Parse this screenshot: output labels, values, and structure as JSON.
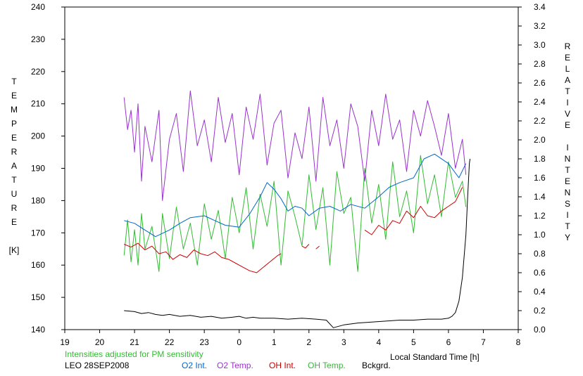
{
  "chart_data": {
    "type": "line",
    "title": "",
    "xlabel": "Local Standard Time [h]",
    "ylabel_left_letters": [
      "T",
      "E",
      "M",
      "P",
      "E",
      "R",
      "A",
      "T",
      "U",
      "R",
      "E",
      "",
      "[K]"
    ],
    "ylabel_right_letters": [
      "R",
      "E",
      "L",
      "A",
      "T",
      "I",
      "V",
      "E",
      "",
      "I",
      "N",
      "T",
      "E",
      "N",
      "S",
      "I",
      "T",
      "Y"
    ],
    "xlim": [
      19,
      32
    ],
    "x_ticks": [
      19,
      20,
      21,
      22,
      23,
      24,
      25,
      26,
      27,
      28,
      29,
      30,
      31,
      32
    ],
    "x_tick_labels": [
      "19",
      "20",
      "21",
      "22",
      "23",
      "0",
      "1",
      "2",
      "3",
      "4",
      "5",
      "6",
      "7",
      "8"
    ],
    "ylim_left": [
      140,
      240
    ],
    "y_left_ticks": [
      140,
      150,
      160,
      170,
      180,
      190,
      200,
      210,
      220,
      230,
      240
    ],
    "ylim_right": [
      0.0,
      3.4
    ],
    "y_right_ticks": [
      0.0,
      0.2,
      0.4,
      0.6,
      0.8,
      1.0,
      1.2,
      1.4,
      1.6,
      1.8,
      2.0,
      2.2,
      2.4,
      2.6,
      2.8,
      3.0,
      3.2,
      3.4
    ],
    "note": "Intensities adjusted for PM sensitivity",
    "site_date": "LEO 28SEP2008",
    "grid": false,
    "series": [
      {
        "name": "O2 Int.",
        "axis": "right",
        "color": "#0066cc",
        "x": [
          20.7,
          21.0,
          21.3,
          21.6,
          22.0,
          22.3,
          22.6,
          23.0,
          23.3,
          23.6,
          24.0,
          24.3,
          24.6,
          24.8,
          25.0,
          25.2,
          25.4,
          25.6,
          25.8,
          26.0,
          26.3,
          26.6,
          26.9,
          27.2,
          27.6,
          28.0,
          28.3,
          28.6,
          29.0,
          29.3,
          29.6,
          30.0,
          30.3,
          30.5
        ],
        "y": [
          1.15,
          1.12,
          1.05,
          0.98,
          1.05,
          1.12,
          1.18,
          1.2,
          1.15,
          1.1,
          1.08,
          1.22,
          1.4,
          1.55,
          1.48,
          1.38,
          1.25,
          1.3,
          1.28,
          1.2,
          1.28,
          1.3,
          1.25,
          1.32,
          1.28,
          1.4,
          1.5,
          1.55,
          1.6,
          1.8,
          1.85,
          1.75,
          1.6,
          1.75
        ]
      },
      {
        "name": "O2 Temp.",
        "axis": "left",
        "color": "#9933cc",
        "x": [
          20.7,
          20.8,
          20.9,
          21.0,
          21.1,
          21.2,
          21.3,
          21.5,
          21.7,
          21.8,
          22.0,
          22.2,
          22.4,
          22.6,
          22.8,
          23.0,
          23.2,
          23.4,
          23.6,
          23.8,
          24.0,
          24.2,
          24.4,
          24.6,
          24.8,
          25.0,
          25.2,
          25.4,
          25.6,
          25.8,
          26.0,
          26.2,
          26.4,
          26.6,
          26.8,
          27.0,
          27.2,
          27.4,
          27.6,
          27.8,
          28.0,
          28.2,
          28.4,
          28.6,
          28.8,
          29.0,
          29.2,
          29.4,
          29.6,
          29.8,
          30.0,
          30.2,
          30.4,
          30.5
        ],
        "y": [
          212,
          202,
          208,
          195,
          210,
          186,
          203,
          192,
          208,
          180,
          199,
          207,
          189,
          214,
          197,
          205,
          192,
          212,
          198,
          207,
          188,
          209,
          199,
          213,
          191,
          204,
          208,
          187,
          201,
          193,
          209,
          186,
          212,
          197,
          205,
          190,
          210,
          203,
          186,
          208,
          197,
          213,
          199,
          205,
          189,
          208,
          200,
          211,
          203,
          194,
          207,
          190,
          199,
          188
        ]
      },
      {
        "name": "OH Int.",
        "axis": "right",
        "color": "#cc0000",
        "segments": [
          {
            "x": [
              20.7,
              20.9,
              21.1,
              21.3,
              21.5,
              21.7,
              21.9,
              22.1,
              22.3,
              22.5,
              22.7,
              22.9,
              23.1,
              23.3,
              23.5,
              23.7,
              23.9,
              24.1,
              24.3,
              24.5,
              24.7,
              24.9,
              25.1,
              25.2
            ],
            "y": [
              0.9,
              0.87,
              0.91,
              0.84,
              0.88,
              0.8,
              0.82,
              0.74,
              0.79,
              0.76,
              0.84,
              0.8,
              0.78,
              0.82,
              0.76,
              0.74,
              0.7,
              0.66,
              0.62,
              0.6,
              0.66,
              0.72,
              0.78,
              0.8
            ]
          },
          {
            "x": [
              25.8,
              25.9,
              26.0
            ],
            "y": [
              0.88,
              0.86,
              0.9
            ]
          },
          {
            "x": [
              26.2,
              26.3
            ],
            "y": [
              0.85,
              0.88
            ]
          },
          {
            "x": [
              27.6,
              27.8,
              28.0,
              28.2,
              28.4,
              28.6,
              28.8,
              29.0,
              29.2,
              29.4,
              29.6,
              29.8,
              30.0,
              30.2,
              30.4
            ],
            "y": [
              1.05,
              1.0,
              1.1,
              1.05,
              1.15,
              1.12,
              1.25,
              1.18,
              1.3,
              1.2,
              1.18,
              1.25,
              1.3,
              1.35,
              1.5
            ]
          }
        ]
      },
      {
        "name": "OH Temp.",
        "axis": "left",
        "color": "#33bb33",
        "x": [
          20.7,
          20.8,
          20.9,
          21.0,
          21.1,
          21.2,
          21.3,
          21.5,
          21.7,
          21.8,
          22.0,
          22.2,
          22.4,
          22.6,
          22.8,
          23.0,
          23.2,
          23.4,
          23.6,
          23.8,
          24.0,
          24.2,
          24.4,
          24.6,
          24.8,
          25.0,
          25.2,
          25.4,
          25.6,
          25.8,
          26.0,
          26.2,
          26.4,
          26.6,
          26.8,
          27.0,
          27.2,
          27.4,
          27.6,
          27.8,
          28.0,
          28.2,
          28.4,
          28.6,
          28.8,
          29.0,
          29.2,
          29.4,
          29.6,
          29.8,
          30.0,
          30.2,
          30.4,
          30.5
        ],
        "y": [
          163,
          174,
          161,
          171,
          160,
          176,
          165,
          172,
          158,
          176,
          162,
          178,
          165,
          173,
          160,
          179,
          168,
          177,
          162,
          181,
          170,
          184,
          165,
          182,
          172,
          186,
          160,
          183,
          175,
          166,
          188,
          171,
          184,
          160,
          189,
          176,
          181,
          158,
          190,
          173,
          185,
          168,
          192,
          175,
          183,
          170,
          194,
          179,
          188,
          175,
          192,
          181,
          186,
          178
        ]
      },
      {
        "name": "Bckgrd.",
        "axis": "right",
        "color": "#000000",
        "x": [
          20.7,
          21.0,
          21.2,
          21.4,
          21.6,
          21.8,
          22.0,
          22.3,
          22.6,
          22.9,
          23.2,
          23.5,
          23.8,
          24.0,
          24.2,
          24.4,
          24.6,
          24.8,
          25.0,
          25.4,
          25.8,
          26.2,
          26.5,
          26.7,
          27.0,
          27.4,
          27.8,
          28.2,
          28.6,
          29.0,
          29.4,
          29.8,
          30.0,
          30.1,
          30.2,
          30.3,
          30.4,
          30.5,
          30.55,
          30.6,
          30.62
        ],
        "y": [
          0.2,
          0.19,
          0.17,
          0.18,
          0.16,
          0.15,
          0.16,
          0.14,
          0.15,
          0.13,
          0.14,
          0.12,
          0.13,
          0.14,
          0.12,
          0.13,
          0.12,
          0.12,
          0.12,
          0.11,
          0.12,
          0.11,
          0.1,
          0.02,
          0.05,
          0.07,
          0.08,
          0.09,
          0.1,
          0.1,
          0.11,
          0.11,
          0.12,
          0.14,
          0.18,
          0.3,
          0.55,
          1.0,
          1.4,
          1.75,
          1.8
        ]
      }
    ]
  }
}
